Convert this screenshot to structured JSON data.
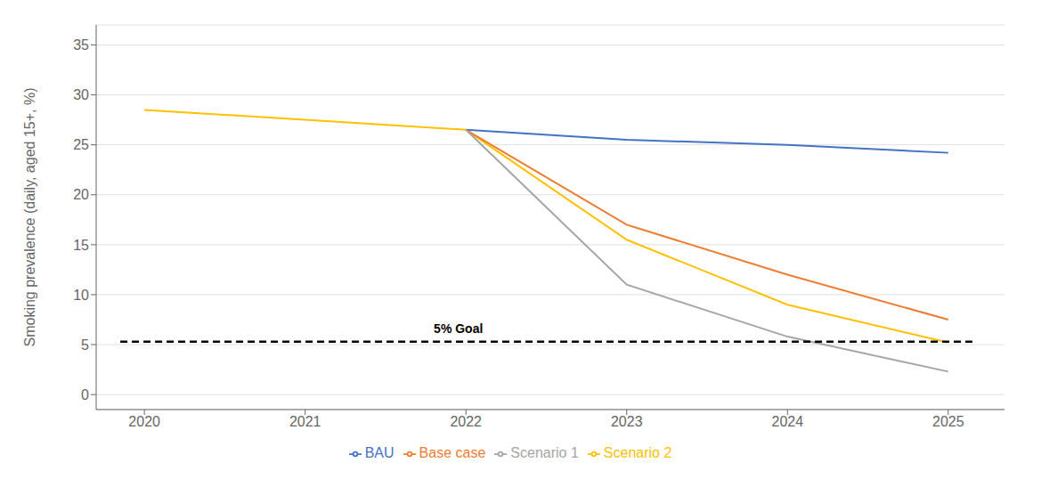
{
  "chart_data": {
    "type": "line",
    "ylabel": "Smoking prevalence (daily, aged 15+, %)",
    "x": [
      2020,
      2021,
      2022,
      2023,
      2024,
      2025
    ],
    "xlim": [
      2019.7,
      2025.35
    ],
    "xticks": [
      2020,
      2021,
      2022,
      2023,
      2024,
      2025
    ],
    "ylim": [
      -1.5,
      37
    ],
    "yticks": [
      0,
      5,
      10,
      15,
      20,
      25,
      30,
      35
    ],
    "grid": "y",
    "legend": "bottom",
    "series": [
      {
        "name": "Scenario 2",
        "color": "#FFC000",
        "values": [
          28.5,
          27.5,
          26.5,
          15.5,
          9.0,
          5.2
        ]
      },
      {
        "name": "BAU",
        "color": "#4472C4",
        "values": [
          null,
          null,
          26.5,
          25.5,
          25.0,
          24.2
        ]
      },
      {
        "name": "Base case",
        "color": "#ED7D31",
        "values": [
          null,
          null,
          26.5,
          17.0,
          12.0,
          7.5
        ]
      },
      {
        "name": "Scenario 1",
        "color": "#A5A5A5",
        "values": [
          null,
          null,
          26.5,
          11.0,
          5.8,
          2.3
        ]
      }
    ],
    "reference_lines": [
      {
        "y": 5.3,
        "xmin": 2019.85,
        "xmax": 2025.15,
        "color": "#000000",
        "line_style": "dashed"
      }
    ],
    "annotations": [
      {
        "text": "5% Goal",
        "x": 2021.8,
        "y": 6.2,
        "color": "#000000"
      }
    ]
  }
}
